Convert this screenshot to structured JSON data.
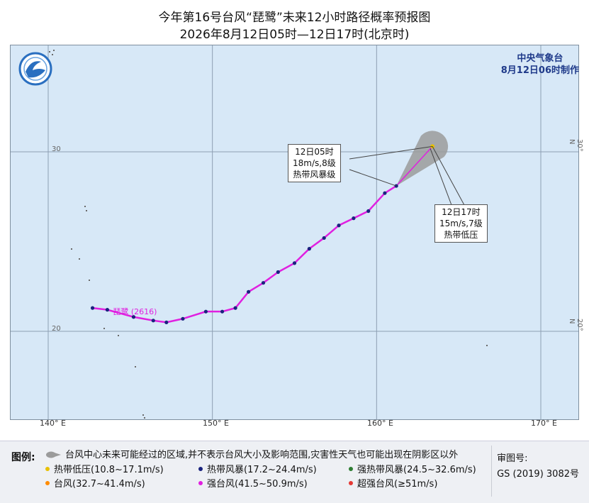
{
  "title": {
    "line1": "今年第16号台风“琵鹭”未来12小时路径概率预报图",
    "line2": "2026年8月12日05时—12日17时(北京时)"
  },
  "agency": {
    "name": "中央气象台",
    "issued": "8月12日06时制作"
  },
  "axes": {
    "lon_labels": [
      "140° E",
      "150° E",
      "160° E",
      "170° E"
    ],
    "lat_labels": [
      "30",
      "20"
    ],
    "lat_right_labels": [
      "30° N",
      "20° N"
    ]
  },
  "typhoon": {
    "label": "琵鹭 (2616)",
    "track_color": "#e020e0",
    "track_lonlat": [
      [
        142.7,
        21.3
      ],
      [
        143.6,
        21.2
      ],
      [
        145.2,
        20.8
      ],
      [
        146.4,
        20.6
      ],
      [
        147.2,
        20.5
      ],
      [
        148.2,
        20.7
      ],
      [
        149.6,
        21.1
      ],
      [
        150.6,
        21.1
      ],
      [
        151.4,
        21.3
      ],
      [
        152.2,
        22.2
      ],
      [
        153.1,
        22.7
      ],
      [
        154.0,
        23.3
      ],
      [
        155.0,
        23.8
      ],
      [
        155.9,
        24.6
      ],
      [
        156.8,
        25.2
      ],
      [
        157.7,
        25.9
      ],
      [
        158.6,
        26.3
      ],
      [
        159.5,
        26.7
      ],
      [
        160.5,
        27.7
      ],
      [
        161.2,
        28.1
      ]
    ],
    "forecast_start_lonlat": [
      161.2,
      28.1
    ],
    "forecast_end_lonlat": [
      163.4,
      30.3
    ],
    "cone_color": "#9b9b9b",
    "point_color": "#1a237e",
    "end_point_color": "#e8c000"
  },
  "callouts": {
    "current": {
      "time": "12日05时",
      "wind": "18m/s,8级",
      "level": "热带风暴级"
    },
    "forecast": {
      "time": "12日17时",
      "wind": "15m/s,7级",
      "level": "热带低压"
    }
  },
  "legend": {
    "heading": "图例:",
    "cone_text": "台风中心未来可能经过的区域,并不表示台风大小及影响范围,灾害性天气也可能出现在阴影区以外",
    "items": [
      {
        "label": "热带低压(10.8~17.1m/s)",
        "color": "#e8c000"
      },
      {
        "label": "热带风暴(17.2~24.4m/s)",
        "color": "#1a237e"
      },
      {
        "label": "强热带风暴(24.5~32.6m/s)",
        "color": "#2e7d32"
      },
      {
        "label": "台风(32.7~41.4m/s)",
        "color": "#ff8c00"
      },
      {
        "label": "强台风(41.5~50.9m/s)",
        "color": "#e020e0"
      },
      {
        "label": "超强台风(≥51m/s)",
        "color": "#e53935"
      }
    ]
  },
  "review": {
    "label": "审图号:",
    "number": "GS (2019) 3082号"
  }
}
